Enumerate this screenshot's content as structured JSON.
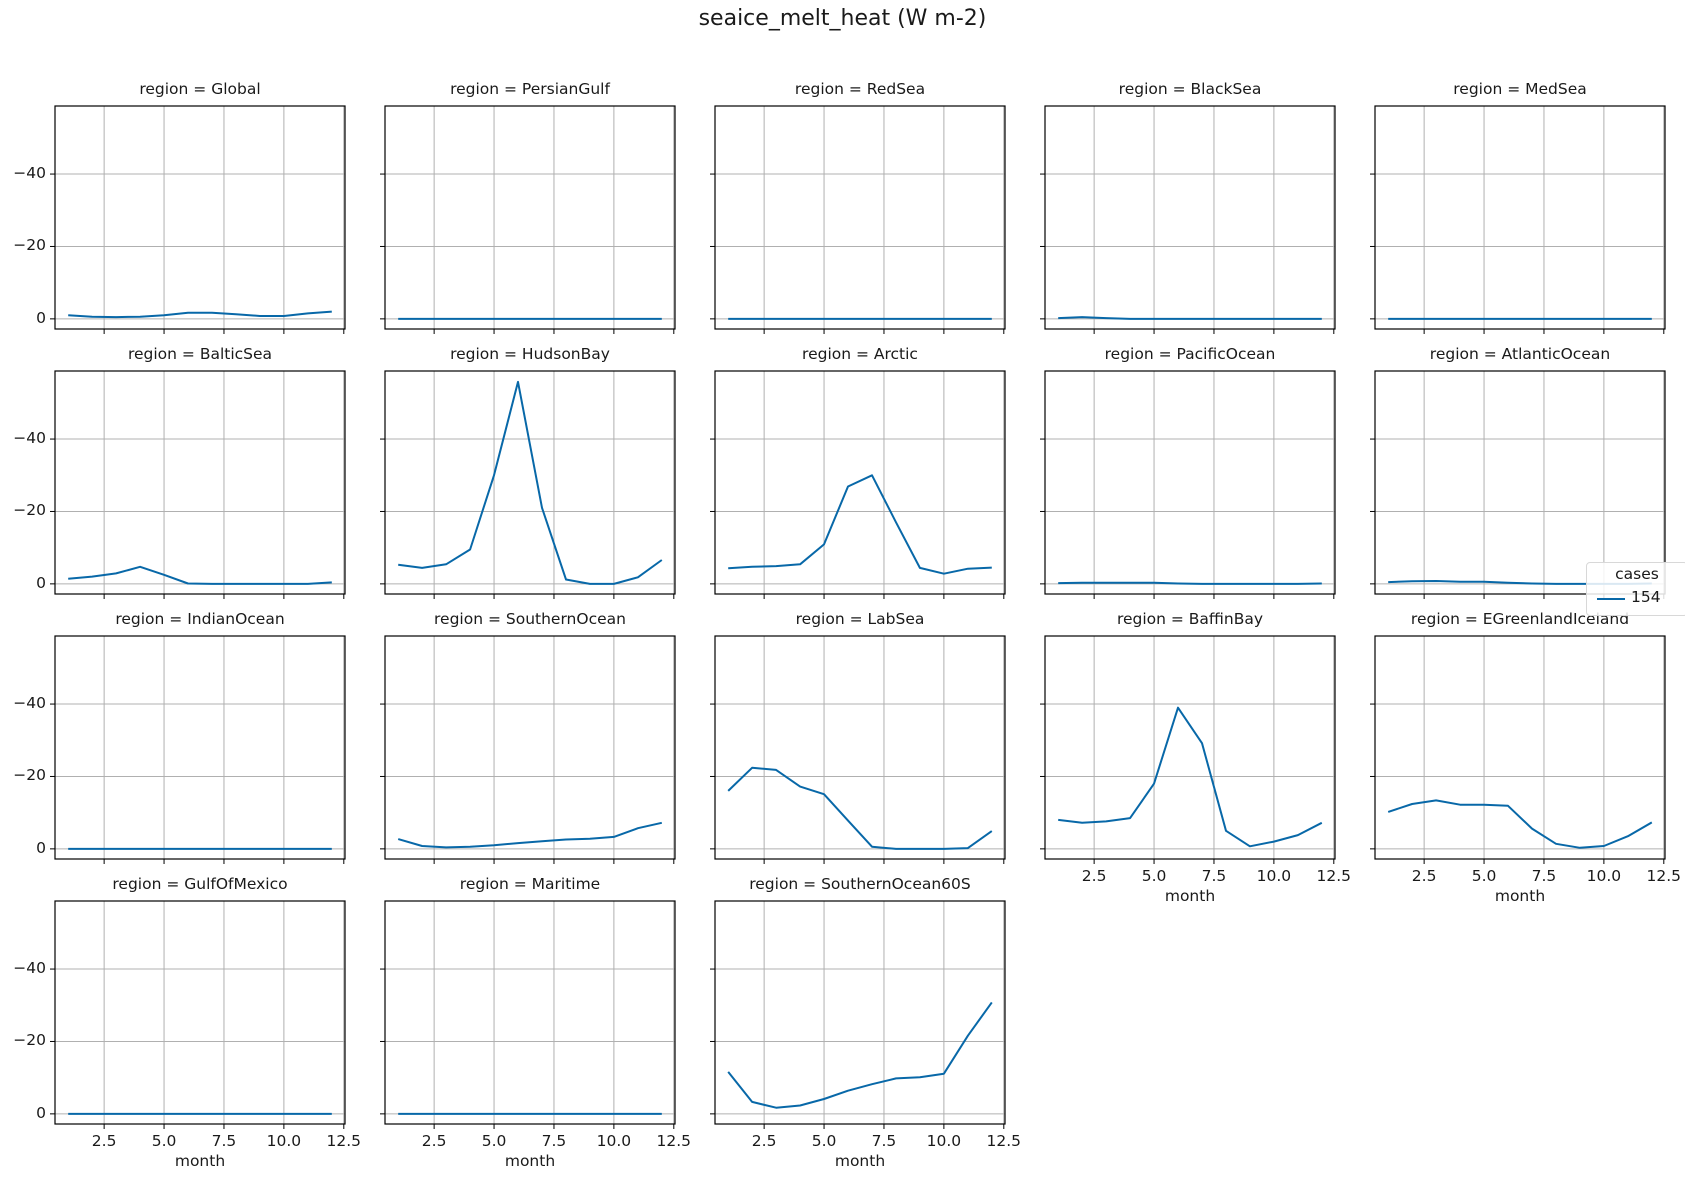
{
  "figure": {
    "title": "seaice_melt_heat (W m-2)",
    "line_color": "#0868a8",
    "grid_color": "#b0b0b0"
  },
  "legend": {
    "title": "cases",
    "entries": [
      {
        "label": "154",
        "color": "#0868a8"
      }
    ]
  },
  "chart_data": {
    "type": "line",
    "title": "seaice_melt_heat (W m-2)",
    "xlabel": "month",
    "ylabel": "",
    "xlim": [
      0.45,
      12.55
    ],
    "ylim": [
      2.8,
      -58.8
    ],
    "y_inverted": true,
    "xticks": [
      2.5,
      5.0,
      7.5,
      10.0,
      12.5
    ],
    "xtick_labels": [
      "2.5",
      "5.0",
      "7.5",
      "10.0",
      "12.5"
    ],
    "yticks": [
      0,
      -20,
      -40
    ],
    "ytick_labels": [
      "0",
      "−20",
      "−40"
    ],
    "grid": true,
    "legend_title": "cases",
    "legend_position": "right, middle",
    "x": [
      1,
      2,
      3,
      4,
      5,
      6,
      7,
      8,
      9,
      10,
      11,
      12
    ],
    "series_name": "154",
    "panels": [
      {
        "region": "Global",
        "title": "region = Global",
        "values": [
          -1.0,
          -0.6,
          -0.5,
          -0.6,
          -1.0,
          -1.7,
          -1.7,
          -1.3,
          -0.8,
          -0.8,
          -1.5,
          -2.0
        ]
      },
      {
        "region": "PersianGulf",
        "title": "region = PersianGulf",
        "values": [
          0,
          0,
          0,
          0,
          0,
          0,
          0,
          0,
          0,
          0,
          0,
          0
        ]
      },
      {
        "region": "RedSea",
        "title": "region = RedSea",
        "values": [
          0,
          0,
          0,
          0,
          0,
          0,
          0,
          0,
          0,
          0,
          0,
          0
        ]
      },
      {
        "region": "BlackSea",
        "title": "region = BlackSea",
        "values": [
          -0.2,
          -0.5,
          -0.2,
          0,
          0,
          0,
          0,
          0,
          0,
          0,
          0,
          0
        ]
      },
      {
        "region": "MedSea",
        "title": "region = MedSea",
        "values": [
          0,
          0,
          0,
          0,
          0,
          0,
          0,
          0,
          0,
          0,
          0,
          0
        ]
      },
      {
        "region": "BalticSea",
        "title": "region = BalticSea",
        "values": [
          -1.4,
          -2.0,
          -2.9,
          -4.7,
          -2.5,
          -0.1,
          0,
          0,
          0,
          0,
          0,
          -0.4
        ]
      },
      {
        "region": "HudsonBay",
        "title": "region = HudsonBay",
        "values": [
          -5.3,
          -4.4,
          -5.4,
          -9.5,
          -30.0,
          -55.8,
          -21.0,
          -1.2,
          0,
          0,
          -1.8,
          -6.6
        ]
      },
      {
        "region": "Arctic",
        "title": "region = Arctic",
        "values": [
          -4.3,
          -4.7,
          -4.9,
          -5.4,
          -10.9,
          -26.9,
          -30.0,
          -17.0,
          -4.4,
          -2.8,
          -4.2,
          -4.5
        ]
      },
      {
        "region": "PacificOcean",
        "title": "region = PacificOcean",
        "values": [
          -0.2,
          -0.3,
          -0.3,
          -0.3,
          -0.3,
          -0.1,
          0,
          0,
          0,
          0,
          0,
          -0.1
        ]
      },
      {
        "region": "AtlanticOcean",
        "title": "region = AtlanticOcean",
        "values": [
          -0.5,
          -0.7,
          -0.8,
          -0.6,
          -0.6,
          -0.3,
          -0.1,
          0,
          0,
          0,
          0,
          -0.1
        ]
      },
      {
        "region": "IndianOcean",
        "title": "region = IndianOcean",
        "values": [
          0,
          0,
          0,
          0,
          0,
          0,
          0,
          0,
          0,
          0,
          0,
          0
        ]
      },
      {
        "region": "SouthernOcean",
        "title": "region = SouthernOcean",
        "values": [
          -2.7,
          -0.8,
          -0.4,
          -0.6,
          -1.0,
          -1.6,
          -2.1,
          -2.6,
          -2.8,
          -3.3,
          -5.7,
          -7.2
        ]
      },
      {
        "region": "LabSea",
        "title": "region = LabSea",
        "values": [
          -16.0,
          -22.4,
          -21.8,
          -17.2,
          -15.1,
          -7.8,
          -0.6,
          0,
          0,
          0,
          -0.2,
          -4.9
        ]
      },
      {
        "region": "BaffinBay",
        "title": "region = BaffinBay",
        "values": [
          -8.0,
          -7.2,
          -7.6,
          -8.5,
          -18.0,
          -39.0,
          -29.2,
          -5.0,
          -0.7,
          -2.0,
          -3.8,
          -7.2
        ]
      },
      {
        "region": "EGreenlandIceland",
        "title": "region = EGreenlandIceland",
        "values": [
          -10.2,
          -12.4,
          -13.4,
          -12.2,
          -12.2,
          -11.9,
          -5.6,
          -1.4,
          -0.3,
          -0.8,
          -3.5,
          -7.3
        ]
      },
      {
        "region": "GulfOfMexico",
        "title": "region = GulfOfMexico",
        "values": [
          0,
          0,
          0,
          0,
          0,
          0,
          0,
          0,
          0,
          0,
          0,
          0
        ]
      },
      {
        "region": "Maritime",
        "title": "region = Maritime",
        "values": [
          0,
          0,
          0,
          0,
          0,
          0,
          0,
          0,
          0,
          0,
          0,
          0
        ]
      },
      {
        "region": "SouthernOcean60S",
        "title": "region = SouthernOcean60S",
        "values": [
          -11.6,
          -3.3,
          -1.7,
          -2.3,
          -4.1,
          -6.4,
          -8.2,
          -9.8,
          -10.1,
          -11.1,
          -21.6,
          -30.8
        ]
      }
    ]
  }
}
